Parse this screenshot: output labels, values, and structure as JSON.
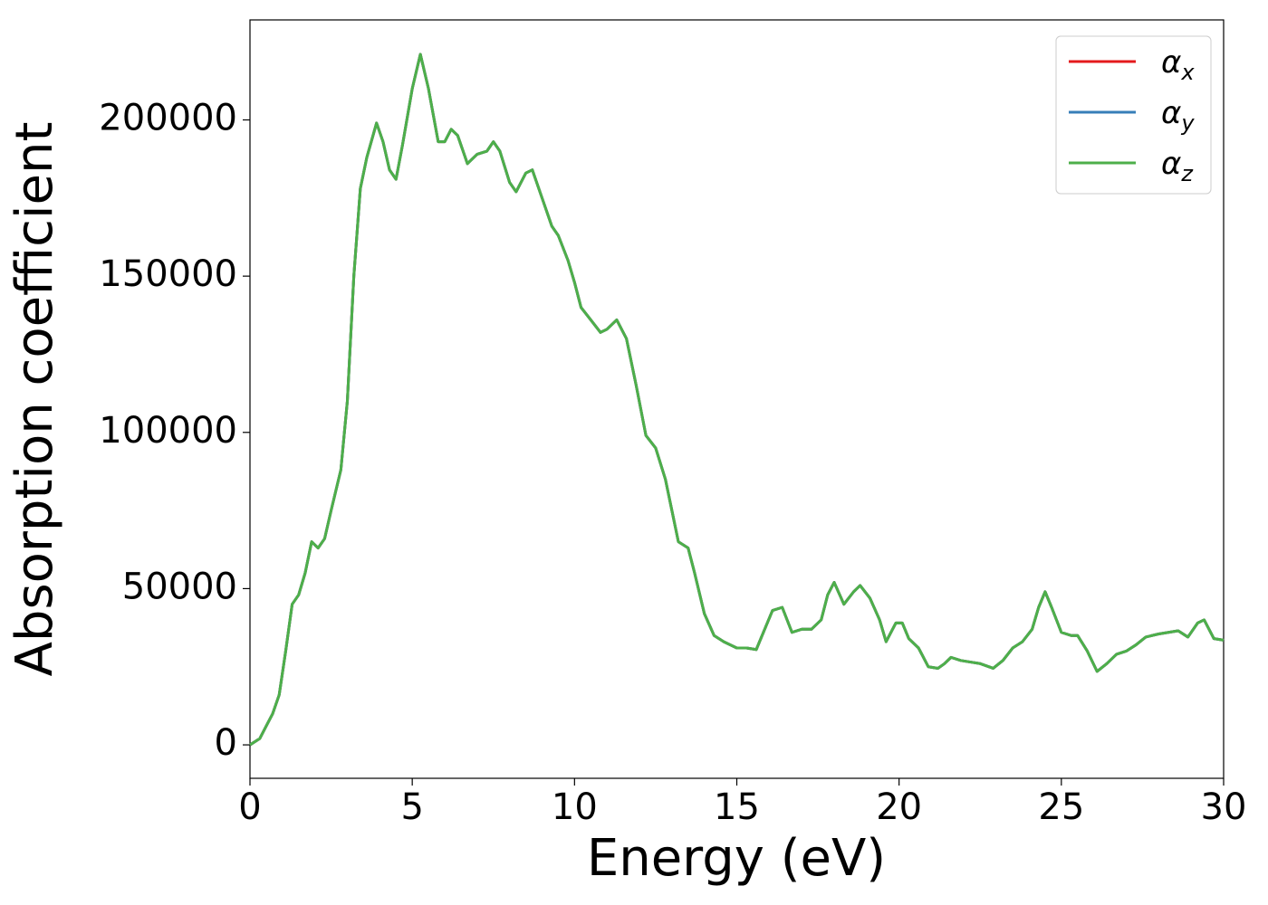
{
  "chart_data": {
    "type": "line",
    "xlabel": "Energy (eV)",
    "ylabel": "Absorption coefficient",
    "x": [
      0,
      0.3,
      0.5,
      0.7,
      0.9,
      1.1,
      1.3,
      1.5,
      1.7,
      1.9,
      2.1,
      2.3,
      2.5,
      2.8,
      3.0,
      3.2,
      3.4,
      3.6,
      3.9,
      4.1,
      4.3,
      4.5,
      4.7,
      5.0,
      5.25,
      5.5,
      5.8,
      6.0,
      6.2,
      6.4,
      6.7,
      7.0,
      7.3,
      7.5,
      7.7,
      8.0,
      8.2,
      8.5,
      8.7,
      9.0,
      9.3,
      9.5,
      9.8,
      10.0,
      10.2,
      10.5,
      10.8,
      11.0,
      11.3,
      11.6,
      11.9,
      12.2,
      12.5,
      12.8,
      13.0,
      13.2,
      13.5,
      13.7,
      14.0,
      14.3,
      14.6,
      15.0,
      15.3,
      15.6,
      15.9,
      16.1,
      16.4,
      16.7,
      17.0,
      17.3,
      17.6,
      17.8,
      18.0,
      18.3,
      18.6,
      18.8,
      19.1,
      19.4,
      19.6,
      19.9,
      20.1,
      20.3,
      20.6,
      20.9,
      21.2,
      21.4,
      21.6,
      21.9,
      22.2,
      22.5,
      22.9,
      23.2,
      23.5,
      23.8,
      24.1,
      24.3,
      24.5,
      24.7,
      25.0,
      25.3,
      25.5,
      25.8,
      26.1,
      26.4,
      26.7,
      27.0,
      27.3,
      27.6,
      28.0,
      28.3,
      28.6,
      28.9,
      29.2,
      29.4,
      29.7,
      30.0
    ],
    "series": [
      {
        "name": "αx",
        "color": "#e41a1c",
        "values": [
          0,
          2000,
          6000,
          10000,
          16000,
          30000,
          45000,
          48000,
          55000,
          65000,
          63000,
          66000,
          75000,
          88000,
          110000,
          150000,
          178000,
          188000,
          199000,
          193000,
          184000,
          181000,
          192000,
          210000,
          221000,
          210000,
          193000,
          193000,
          197000,
          195000,
          186000,
          189000,
          190000,
          193000,
          190000,
          180000,
          177000,
          183000,
          184000,
          175000,
          166000,
          163000,
          155000,
          148000,
          140000,
          136000,
          132000,
          133000,
          136000,
          130000,
          115000,
          99000,
          95000,
          85000,
          75000,
          65000,
          63000,
          55000,
          42000,
          35000,
          33000,
          31000,
          31000,
          30500,
          38000,
          43000,
          44000,
          36000,
          37000,
          37000,
          40000,
          48000,
          52000,
          45000,
          49000,
          51000,
          47000,
          40000,
          33000,
          39000,
          39000,
          34000,
          31000,
          25000,
          24500,
          26000,
          28000,
          27000,
          26500,
          26000,
          24500,
          27000,
          31000,
          33000,
          37000,
          44000,
          49000,
          44000,
          36000,
          35000,
          35000,
          30000,
          23500,
          26000,
          29000,
          30000,
          32000,
          34500,
          35500,
          36000,
          36500,
          34500,
          39000,
          40000,
          34000,
          33500
        ]
      },
      {
        "name": "αy",
        "color": "#377eb8",
        "values": [
          0,
          2000,
          6000,
          10000,
          16000,
          30000,
          45000,
          48000,
          55000,
          65000,
          63000,
          66000,
          75000,
          88000,
          110000,
          150000,
          178000,
          188000,
          199000,
          193000,
          184000,
          181000,
          192000,
          210000,
          221000,
          210000,
          193000,
          193000,
          197000,
          195000,
          186000,
          189000,
          190000,
          193000,
          190000,
          180000,
          177000,
          183000,
          184000,
          175000,
          166000,
          163000,
          155000,
          148000,
          140000,
          136000,
          132000,
          133000,
          136000,
          130000,
          115000,
          99000,
          95000,
          85000,
          75000,
          65000,
          63000,
          55000,
          42000,
          35000,
          33000,
          31000,
          31000,
          30500,
          38000,
          43000,
          44000,
          36000,
          37000,
          37000,
          40000,
          48000,
          52000,
          45000,
          49000,
          51000,
          47000,
          40000,
          33000,
          39000,
          39000,
          34000,
          31000,
          25000,
          24500,
          26000,
          28000,
          27000,
          26500,
          26000,
          24500,
          27000,
          31000,
          33000,
          37000,
          44000,
          49000,
          44000,
          36000,
          35000,
          35000,
          30000,
          23500,
          26000,
          29000,
          30000,
          32000,
          34500,
          35500,
          36000,
          36500,
          34500,
          39000,
          40000,
          34000,
          33500
        ]
      },
      {
        "name": "αz",
        "color": "#4daf4a",
        "values": [
          0,
          2000,
          6000,
          10000,
          16000,
          30000,
          45000,
          48000,
          55000,
          65000,
          63000,
          66000,
          75000,
          88000,
          110000,
          150000,
          178000,
          188000,
          199000,
          193000,
          184000,
          181000,
          192000,
          210000,
          221000,
          210000,
          193000,
          193000,
          197000,
          195000,
          186000,
          189000,
          190000,
          193000,
          190000,
          180000,
          177000,
          183000,
          184000,
          175000,
          166000,
          163000,
          155000,
          148000,
          140000,
          136000,
          132000,
          133000,
          136000,
          130000,
          115000,
          99000,
          95000,
          85000,
          75000,
          65000,
          63000,
          55000,
          42000,
          35000,
          33000,
          31000,
          31000,
          30500,
          38000,
          43000,
          44000,
          36000,
          37000,
          37000,
          40000,
          48000,
          52000,
          45000,
          49000,
          51000,
          47000,
          40000,
          33000,
          39000,
          39000,
          34000,
          31000,
          25000,
          24500,
          26000,
          28000,
          27000,
          26500,
          26000,
          24500,
          27000,
          31000,
          33000,
          37000,
          44000,
          49000,
          44000,
          36000,
          35000,
          35000,
          30000,
          23500,
          26000,
          29000,
          30000,
          32000,
          34500,
          35500,
          36000,
          36500,
          34500,
          39000,
          40000,
          34000,
          33500
        ]
      }
    ],
    "xlim": [
      0,
      30
    ],
    "xticks": [
      0,
      5,
      10,
      15,
      20,
      25,
      30
    ],
    "ylim": [
      -10700,
      232000
    ],
    "yticks": [
      0,
      50000,
      100000,
      150000,
      200000
    ],
    "grid": false,
    "legend": "upper right"
  }
}
